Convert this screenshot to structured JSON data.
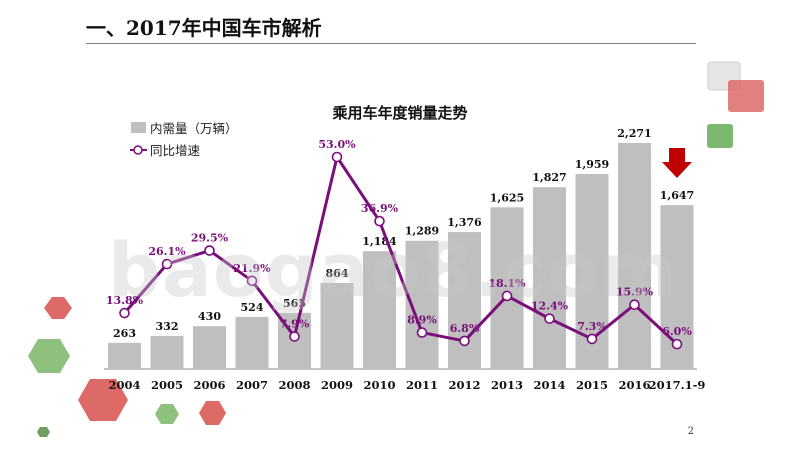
{
  "slide": {
    "title": "一、2017年中国车市解析",
    "page_number": "2",
    "watermark": "baogao8.com"
  },
  "colors": {
    "bar": "#bfbfbf",
    "line": "#7a0f7a",
    "label_purple": "#7a0f7a",
    "arrow_red": "#c00000",
    "deco_red": "#d9534f",
    "deco_green": "#7cb86e",
    "deco_gray": "#dcdcdc"
  },
  "icons": {
    "arrow": "red-down-arrow-icon"
  },
  "chart_data": {
    "type": "bar",
    "title": "乘用车年度销量走势",
    "categories": [
      "2004",
      "2005",
      "2006",
      "2007",
      "2008",
      "2009",
      "2010",
      "2011",
      "2012",
      "2013",
      "2014",
      "2015",
      "2016",
      "2017.1-9"
    ],
    "series": [
      {
        "name": "内需量（万辆）",
        "type": "bar",
        "values": [
          263,
          332,
          430,
          524,
          565,
          864,
          1184,
          1289,
          1376,
          1625,
          1827,
          1959,
          2271,
          1647
        ],
        "labels": [
          "263",
          "332",
          "430",
          "524",
          "565",
          "864",
          "1,184",
          "1,289",
          "1,376",
          "1,625",
          "1,827",
          "1,959",
          "2,271",
          "1,647"
        ]
      },
      {
        "name": "同比增速",
        "type": "line",
        "values": [
          13.8,
          26.1,
          29.5,
          21.9,
          7.9,
          53.0,
          36.9,
          8.9,
          6.8,
          18.1,
          12.4,
          7.3,
          15.9,
          6.0
        ],
        "labels": [
          "13.8%",
          "26.1%",
          "29.5%",
          "21.9%",
          "7.9%",
          "53.0%",
          "36.9%",
          "8.9%",
          "6.8%",
          "18.1%",
          "12.4%",
          "7.3%",
          "15.9%",
          "6.0%"
        ]
      }
    ],
    "legend_position": "top-left",
    "grid": false
  }
}
